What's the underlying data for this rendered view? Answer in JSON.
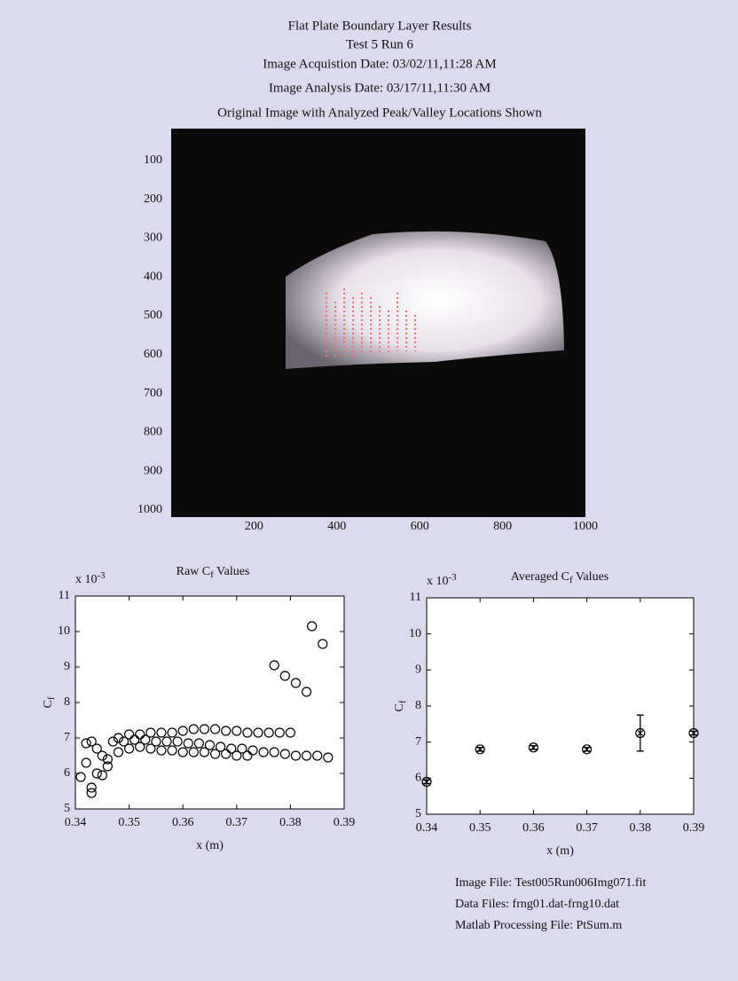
{
  "header": {
    "lines": [
      "Flat Plate Boundary Layer Results",
      "Test  5  Run  6",
      "Image Acquistion Date: 03/02/11,11:28 AM",
      "Image Analysis Date: 03/17/11,11:30 AM",
      "Original Image with Analyzed Peak/Valley Locations Shown"
    ]
  },
  "chart_data": [
    {
      "type": "image",
      "xlim": [
        0,
        1000
      ],
      "ylim": [
        1000,
        0
      ],
      "xticks": [
        200,
        400,
        600,
        800,
        1000
      ],
      "yticks": [
        100,
        200,
        300,
        400,
        500,
        600,
        700,
        800,
        900,
        1000
      ]
    },
    {
      "type": "scatter",
      "title": [
        "Raw C",
        "f",
        " Values"
      ],
      "y_multiplier": [
        "x 10",
        "-3"
      ],
      "xlabel": "x (m)",
      "ylabel": [
        "C",
        "f"
      ],
      "xlim": [
        0.34,
        0.39
      ],
      "ylim": [
        5,
        11
      ],
      "xticks": [
        0.34,
        0.35,
        0.36,
        0.37,
        0.38,
        0.39
      ],
      "yticks": [
        5,
        6,
        7,
        8,
        9,
        10,
        11
      ],
      "x": [
        0.377,
        0.379,
        0.381,
        0.383,
        0.384,
        0.386,
        0.341,
        0.342,
        0.343,
        0.343,
        0.344,
        0.345,
        0.346,
        0.342,
        0.343,
        0.344,
        0.345,
        0.346,
        0.347,
        0.348,
        0.348,
        0.35,
        0.352,
        0.354,
        0.356,
        0.358,
        0.36,
        0.362,
        0.364,
        0.366,
        0.368,
        0.37,
        0.372,
        0.374,
        0.376,
        0.378,
        0.38,
        0.349,
        0.351,
        0.353,
        0.355,
        0.357,
        0.359,
        0.361,
        0.363,
        0.365,
        0.367,
        0.369,
        0.371,
        0.373,
        0.375,
        0.377,
        0.379,
        0.381,
        0.383,
        0.385,
        0.387,
        0.35,
        0.352,
        0.354,
        0.356,
        0.358,
        0.36,
        0.362,
        0.364,
        0.366,
        0.368,
        0.37,
        0.372
      ],
      "y": [
        9.05,
        8.75,
        8.55,
        8.3,
        10.15,
        9.65,
        5.9,
        6.3,
        5.45,
        5.6,
        6.0,
        5.95,
        6.2,
        6.85,
        6.9,
        6.7,
        6.5,
        6.4,
        6.9,
        6.6,
        7.0,
        7.1,
        7.1,
        7.15,
        7.15,
        7.15,
        7.2,
        7.25,
        7.25,
        7.25,
        7.2,
        7.2,
        7.15,
        7.15,
        7.15,
        7.15,
        7.15,
        6.9,
        6.95,
        6.95,
        6.9,
        6.9,
        6.9,
        6.85,
        6.85,
        6.8,
        6.75,
        6.7,
        6.7,
        6.65,
        6.6,
        6.6,
        6.55,
        6.5,
        6.5,
        6.5,
        6.45,
        6.7,
        6.75,
        6.7,
        6.65,
        6.65,
        6.6,
        6.6,
        6.6,
        6.55,
        6.55,
        6.5,
        6.5
      ]
    },
    {
      "type": "errorbar",
      "title": [
        "Averaged C",
        "f",
        " Values"
      ],
      "y_multiplier": [
        "x 10",
        "-3"
      ],
      "xlabel": "x (m)",
      "ylabel": [
        "C",
        "f"
      ],
      "xlim": [
        0.34,
        0.39
      ],
      "ylim": [
        5,
        11
      ],
      "xticks": [
        0.34,
        0.35,
        0.36,
        0.37,
        0.38,
        0.39
      ],
      "yticks": [
        5,
        6,
        7,
        8,
        9,
        10,
        11
      ],
      "x": [
        0.34,
        0.35,
        0.36,
        0.37,
        0.38,
        0.39
      ],
      "y": [
        5.9,
        6.8,
        6.85,
        6.8,
        7.25,
        7.25
      ],
      "errors": [
        0.05,
        0.05,
        0.05,
        0.05,
        0.5,
        0.05
      ]
    }
  ],
  "footer": {
    "lines": [
      "Image File: Test005Run006Img071.fit",
      "Data Files: frng01.dat-frng10.dat",
      "Matlab Processing File: PtSum.m"
    ]
  }
}
